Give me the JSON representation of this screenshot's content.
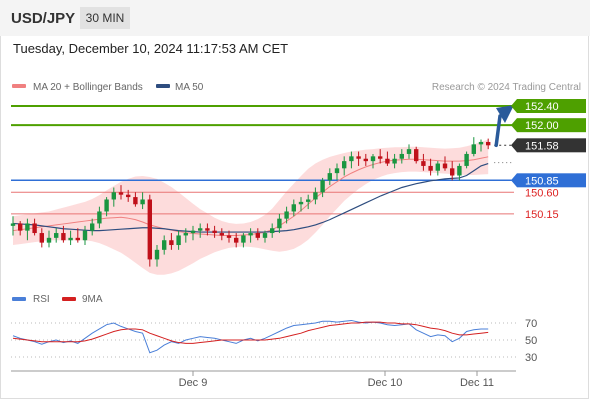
{
  "header": {
    "symbol": "USD/JPY",
    "interval": "30 MIN"
  },
  "timestamp": "Tuesday, December 10, 2024 11:17:53 AM CET",
  "colors": {
    "ma20": "#f08080",
    "bands_fill": "#fdd6d6",
    "ma50": "#2e4d7f",
    "target": "#4ea000",
    "support": "#2f6fd6",
    "pivot": "#333333",
    "resistance_line": "#e87474",
    "up_candle": "#1a9641",
    "down_candle": "#c0101a",
    "rsi": "#4a7fd8",
    "rsi_ma": "#d42020",
    "arrow": "#2a5a9a"
  },
  "chart_data": {
    "type": "line",
    "title": "USD/JPY",
    "legend": [
      {
        "label": "MA 20 + Bollinger Bands",
        "color": "#f08080"
      },
      {
        "label": "MA 50",
        "color": "#2e4d7f"
      }
    ],
    "watermark": "Research © 2024 Trading Central",
    "x_labels": [
      "Dec 9",
      "Dec 10",
      "Dec 11"
    ],
    "current_price": 151.58,
    "levels": [
      {
        "value": 152.4,
        "label": "152.40",
        "kind": "target"
      },
      {
        "value": 152.0,
        "label": "152.00",
        "kind": "target"
      },
      {
        "value": 151.58,
        "label": "151.58",
        "kind": "pivot"
      },
      {
        "value": 150.85,
        "label": "150.85",
        "kind": "support"
      },
      {
        "value": 150.6,
        "label": "150.60",
        "kind": "support2"
      },
      {
        "value": 150.15,
        "label": "150.15",
        "kind": "support2"
      }
    ],
    "ohlc": [
      [
        149.9,
        150.1,
        149.7,
        149.95
      ],
      [
        149.95,
        150.0,
        149.7,
        149.8
      ],
      [
        149.8,
        150.05,
        149.6,
        149.95
      ],
      [
        149.95,
        150.05,
        149.7,
        149.75
      ],
      [
        149.75,
        149.85,
        149.45,
        149.55
      ],
      [
        149.55,
        149.8,
        149.45,
        149.65
      ],
      [
        149.65,
        149.85,
        149.55,
        149.75
      ],
      [
        149.75,
        149.9,
        149.55,
        149.6
      ],
      [
        149.6,
        149.8,
        149.5,
        149.65
      ],
      [
        149.65,
        149.85,
        149.55,
        149.6
      ],
      [
        149.6,
        149.9,
        149.5,
        149.8
      ],
      [
        149.8,
        150.05,
        149.7,
        149.95
      ],
      [
        149.95,
        150.3,
        149.85,
        150.2
      ],
      [
        150.2,
        150.5,
        150.1,
        150.45
      ],
      [
        150.45,
        150.7,
        150.3,
        150.6
      ],
      [
        150.6,
        150.75,
        150.45,
        150.55
      ],
      [
        150.55,
        150.65,
        150.4,
        150.5
      ],
      [
        150.5,
        150.6,
        150.3,
        150.35
      ],
      [
        150.35,
        150.6,
        150.25,
        150.45
      ],
      [
        150.45,
        150.55,
        149.05,
        149.2
      ],
      [
        149.2,
        149.5,
        149.05,
        149.4
      ],
      [
        149.4,
        149.7,
        149.3,
        149.6
      ],
      [
        149.6,
        149.75,
        149.4,
        149.5
      ],
      [
        149.5,
        149.8,
        149.4,
        149.7
      ],
      [
        149.7,
        149.85,
        149.55,
        149.75
      ],
      [
        149.75,
        149.9,
        149.6,
        149.8
      ],
      [
        149.8,
        149.95,
        149.65,
        149.85
      ],
      [
        149.85,
        149.95,
        149.7,
        149.8
      ],
      [
        149.8,
        149.9,
        149.65,
        149.75
      ],
      [
        149.75,
        149.85,
        149.6,
        149.7
      ],
      [
        149.7,
        149.8,
        149.55,
        149.65
      ],
      [
        149.65,
        149.75,
        149.45,
        149.55
      ],
      [
        149.55,
        149.75,
        149.45,
        149.7
      ],
      [
        149.7,
        149.85,
        149.55,
        149.75
      ],
      [
        149.75,
        149.85,
        149.6,
        149.65
      ],
      [
        149.65,
        149.8,
        149.55,
        149.75
      ],
      [
        149.75,
        149.95,
        149.65,
        149.85
      ],
      [
        149.85,
        150.15,
        149.75,
        150.05
      ],
      [
        150.05,
        150.3,
        149.95,
        150.2
      ],
      [
        150.2,
        150.45,
        150.1,
        150.35
      ],
      [
        150.35,
        150.5,
        150.2,
        150.4
      ],
      [
        150.4,
        150.55,
        150.25,
        150.45
      ],
      [
        150.45,
        150.7,
        150.35,
        150.6
      ],
      [
        150.6,
        150.9,
        150.5,
        150.85
      ],
      [
        150.85,
        151.1,
        150.75,
        151.0
      ],
      [
        151.0,
        151.2,
        150.85,
        151.1
      ],
      [
        151.1,
        151.35,
        150.95,
        151.25
      ],
      [
        151.25,
        151.45,
        151.1,
        151.35
      ],
      [
        151.35,
        151.45,
        151.15,
        151.3
      ],
      [
        151.3,
        151.4,
        151.15,
        151.25
      ],
      [
        151.25,
        151.4,
        151.1,
        151.35
      ],
      [
        151.35,
        151.5,
        151.2,
        151.3
      ],
      [
        151.3,
        151.45,
        151.15,
        151.2
      ],
      [
        151.2,
        151.4,
        151.1,
        151.3
      ],
      [
        151.3,
        151.5,
        151.2,
        151.4
      ],
      [
        151.4,
        151.6,
        151.3,
        151.5
      ],
      [
        151.5,
        151.55,
        151.2,
        151.25
      ],
      [
        151.25,
        151.4,
        151.05,
        151.15
      ],
      [
        151.15,
        151.3,
        150.95,
        151.05
      ],
      [
        151.05,
        151.25,
        150.95,
        151.2
      ],
      [
        151.2,
        151.35,
        151.05,
        151.1
      ],
      [
        151.1,
        151.25,
        150.85,
        150.95
      ],
      [
        150.95,
        151.2,
        150.85,
        151.15
      ],
      [
        151.15,
        151.45,
        151.1,
        151.4
      ],
      [
        151.4,
        151.75,
        151.35,
        151.6
      ],
      [
        151.6,
        151.7,
        151.45,
        151.65
      ],
      [
        151.65,
        151.72,
        151.5,
        151.58
      ]
    ],
    "ma20": [
      149.8,
      149.82,
      149.84,
      149.86,
      149.88,
      149.9,
      149.92,
      149.94,
      149.96,
      149.98,
      150.0,
      150.02,
      150.04,
      150.06,
      150.07,
      150.08,
      150.06,
      150.03,
      149.98,
      149.92,
      149.88,
      149.84,
      149.81,
      149.78,
      149.76,
      149.74,
      149.73,
      149.72,
      149.71,
      149.7,
      149.7,
      149.7,
      149.71,
      149.72,
      149.74,
      149.77,
      149.82,
      149.9,
      150.0,
      150.1,
      150.22,
      150.35,
      150.48,
      150.6,
      150.72,
      150.82,
      150.92,
      151.0,
      151.07,
      151.13,
      151.18,
      151.22,
      151.25,
      151.27,
      151.28,
      151.29,
      151.29,
      151.28,
      151.27,
      151.26,
      151.25,
      151.25,
      151.25,
      151.26,
      151.28,
      151.31,
      151.34
    ],
    "band_width": [
      0.3,
      0.3,
      0.3,
      0.3,
      0.3,
      0.3,
      0.32,
      0.34,
      0.36,
      0.38,
      0.4,
      0.44,
      0.5,
      0.58,
      0.66,
      0.74,
      0.82,
      0.9,
      0.96,
      1.0,
      1.0,
      0.96,
      0.9,
      0.82,
      0.72,
      0.62,
      0.52,
      0.44,
      0.36,
      0.3,
      0.26,
      0.24,
      0.24,
      0.26,
      0.3,
      0.36,
      0.44,
      0.54,
      0.62,
      0.68,
      0.72,
      0.74,
      0.72,
      0.68,
      0.62,
      0.56,
      0.5,
      0.45,
      0.4,
      0.36,
      0.32,
      0.3,
      0.28,
      0.27,
      0.26,
      0.26,
      0.26,
      0.26,
      0.26,
      0.26,
      0.26,
      0.27,
      0.28,
      0.3,
      0.32,
      0.34,
      0.36
    ],
    "ma50": [
      149.95,
      149.94,
      149.93,
      149.92,
      149.9,
      149.88,
      149.86,
      149.84,
      149.83,
      149.82,
      149.81,
      149.8,
      149.8,
      149.81,
      149.82,
      149.83,
      149.84,
      149.85,
      149.86,
      149.86,
      149.85,
      149.84,
      149.82,
      149.8,
      149.79,
      149.78,
      149.77,
      149.77,
      149.77,
      149.77,
      149.77,
      149.77,
      149.77,
      149.77,
      149.77,
      149.77,
      149.78,
      149.79,
      149.8,
      149.82,
      149.85,
      149.88,
      149.92,
      149.97,
      150.03,
      150.1,
      150.17,
      150.24,
      150.31,
      150.38,
      150.45,
      150.52,
      150.58,
      150.64,
      150.7,
      150.74,
      150.78,
      150.81,
      150.84,
      150.86,
      150.88,
      150.89,
      150.9,
      150.95,
      151.05,
      151.15,
      151.2
    ],
    "forecast_arrow": {
      "from": 151.58,
      "to": 152.4
    },
    "rsi": {
      "legend": [
        {
          "label": "RSI",
          "color": "#4a7fd8"
        },
        {
          "label": "9MA",
          "color": "#d42020"
        }
      ],
      "ticks": [
        70,
        50,
        30
      ],
      "ylim": [
        20,
        80
      ],
      "values": [
        55,
        52,
        50,
        48,
        45,
        48,
        50,
        47,
        49,
        46,
        52,
        58,
        63,
        68,
        70,
        66,
        63,
        60,
        58,
        35,
        38,
        44,
        48,
        46,
        50,
        52,
        54,
        53,
        52,
        50,
        48,
        46,
        50,
        52,
        49,
        52,
        56,
        60,
        64,
        67,
        68,
        69,
        70,
        72,
        72,
        71,
        72,
        73,
        71,
        70,
        71,
        70,
        68,
        67,
        68,
        69,
        62,
        58,
        54,
        56,
        55,
        48,
        52,
        60,
        62,
        63,
        63
      ],
      "ma": [
        52,
        51,
        50,
        49,
        48,
        48,
        48,
        48,
        48,
        48,
        49,
        51,
        54,
        57,
        60,
        62,
        63,
        63,
        62,
        58,
        55,
        52,
        49,
        47,
        46,
        46,
        47,
        48,
        49,
        50,
        50,
        50,
        50,
        50,
        50,
        50,
        51,
        52,
        54,
        56,
        58,
        61,
        63,
        65,
        67,
        68,
        69,
        70,
        70,
        71,
        71,
        71,
        70,
        70,
        69,
        69,
        68,
        66,
        64,
        63,
        61,
        58,
        56,
        56,
        57,
        58,
        59
      ]
    }
  }
}
